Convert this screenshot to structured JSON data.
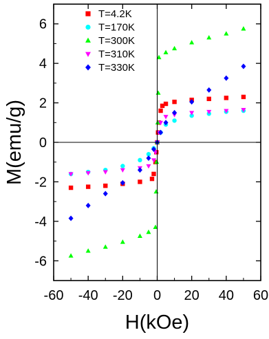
{
  "chart_data": {
    "type": "scatter",
    "xlabel": "H(kOe)",
    "ylabel": "M(emu/g)",
    "xlim": [
      -60,
      60
    ],
    "ylim": [
      -7,
      7
    ],
    "xticks": [
      -60,
      -40,
      -20,
      0,
      20,
      40,
      60
    ],
    "yticks": [
      -6,
      -4,
      -2,
      0,
      2,
      4,
      6
    ],
    "grid": false,
    "zero_lines": true,
    "legend_position": "top-center",
    "series": [
      {
        "name": "T=4.2K",
        "color": "#ff0000",
        "marker": "square",
        "points": [
          [
            -50,
            -2.3
          ],
          [
            -40,
            -2.25
          ],
          [
            -30,
            -2.2
          ],
          [
            -20,
            -2.1
          ],
          [
            -10,
            -2.0
          ],
          [
            -3,
            -1.85
          ],
          [
            -2,
            -1.6
          ],
          [
            -1,
            -1.0
          ],
          [
            -0.5,
            -0.5
          ],
          [
            0,
            0
          ],
          [
            0.5,
            0.5
          ],
          [
            1,
            1.0
          ],
          [
            2,
            1.6
          ],
          [
            3,
            1.85
          ],
          [
            5,
            1.95
          ],
          [
            10,
            2.05
          ],
          [
            20,
            2.15
          ],
          [
            30,
            2.2
          ],
          [
            40,
            2.25
          ],
          [
            50,
            2.3
          ]
        ]
      },
      {
        "name": "T=170K",
        "color": "#00ffff",
        "marker": "circle",
        "points": [
          [
            -50,
            -1.6
          ],
          [
            -40,
            -1.5
          ],
          [
            -30,
            -1.4
          ],
          [
            -20,
            -1.2
          ],
          [
            -10,
            -0.9
          ],
          [
            -5,
            -0.6
          ],
          [
            -2,
            -0.3
          ],
          [
            0,
            0
          ],
          [
            2,
            0.5
          ],
          [
            5,
            0.9
          ],
          [
            10,
            1.1
          ],
          [
            20,
            1.35
          ],
          [
            30,
            1.45
          ],
          [
            40,
            1.55
          ],
          [
            50,
            1.6
          ]
        ]
      },
      {
        "name": "T=300K",
        "color": "#00ff00",
        "marker": "triangle-up",
        "points": [
          [
            -50,
            -5.75
          ],
          [
            -40,
            -5.5
          ],
          [
            -30,
            -5.3
          ],
          [
            -20,
            -5.05
          ],
          [
            -10,
            -4.75
          ],
          [
            -5,
            -4.55
          ],
          [
            -1,
            -4.3
          ],
          [
            -0.6,
            -2.5
          ],
          [
            -0.3,
            -1.0
          ],
          [
            0,
            0
          ],
          [
            0.3,
            1.0
          ],
          [
            0.6,
            2.5
          ],
          [
            1,
            4.3
          ],
          [
            5,
            4.55
          ],
          [
            10,
            4.75
          ],
          [
            20,
            5.05
          ],
          [
            30,
            5.3
          ],
          [
            40,
            5.5
          ],
          [
            50,
            5.75
          ]
        ]
      },
      {
        "name": "T=310K",
        "color": "#ff00ff",
        "marker": "triangle-down",
        "points": [
          [
            -50,
            -1.6
          ],
          [
            -40,
            -1.55
          ],
          [
            -30,
            -1.5
          ],
          [
            -20,
            -1.4
          ],
          [
            -10,
            -1.3
          ],
          [
            -5,
            -1.2
          ],
          [
            -2,
            -0.9
          ],
          [
            -1,
            -0.5
          ],
          [
            0,
            0
          ],
          [
            1,
            0.5
          ],
          [
            2,
            1.0
          ],
          [
            5,
            1.3
          ],
          [
            10,
            1.4
          ],
          [
            20,
            1.5
          ],
          [
            30,
            1.55
          ],
          [
            40,
            1.6
          ],
          [
            50,
            1.65
          ]
        ]
      },
      {
        "name": "T=330K",
        "color": "#0000ff",
        "marker": "diamond",
        "points": [
          [
            -50,
            -3.85
          ],
          [
            -40,
            -3.2
          ],
          [
            -30,
            -2.6
          ],
          [
            -20,
            -2.05
          ],
          [
            -10,
            -1.4
          ],
          [
            -5,
            -0.8
          ],
          [
            -2,
            -0.35
          ],
          [
            0,
            0
          ],
          [
            2,
            0.5
          ],
          [
            5,
            1.0
          ],
          [
            10,
            1.5
          ],
          [
            20,
            2.05
          ],
          [
            30,
            2.65
          ],
          [
            40,
            3.25
          ],
          [
            50,
            3.85
          ]
        ]
      }
    ]
  }
}
